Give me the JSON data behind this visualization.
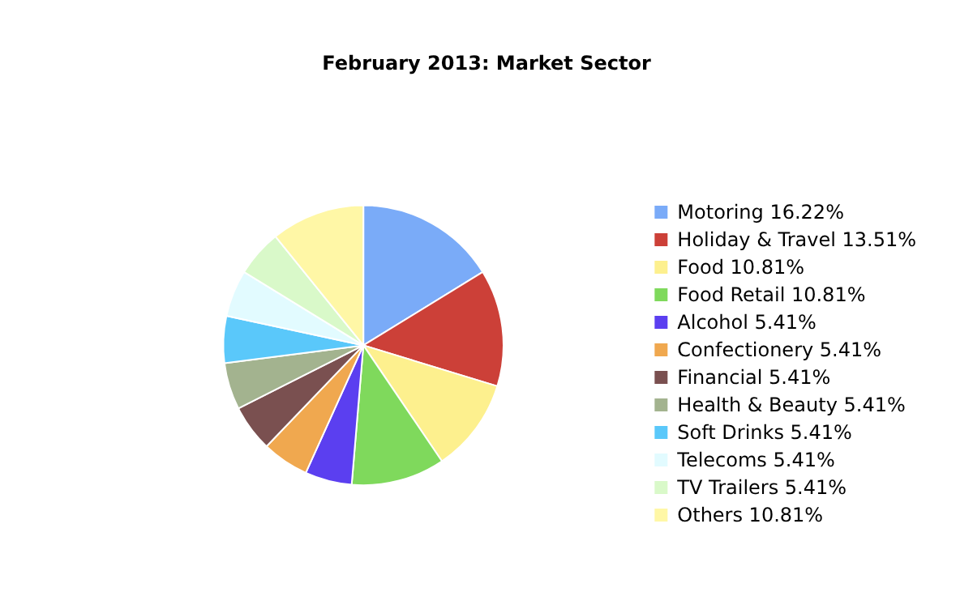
{
  "chart_data": {
    "type": "pie",
    "title": "February 2013: Market Sector",
    "categories": [
      "Motoring",
      "Holiday & Travel",
      "Food",
      "Food Retail",
      "Alcohol",
      "Confectionery",
      "Financial",
      "Health & Beauty",
      "Soft Drinks",
      "Telecoms",
      "TV Trailers",
      "Others"
    ],
    "values": [
      16.22,
      13.51,
      10.81,
      10.81,
      5.41,
      5.41,
      5.41,
      5.41,
      5.41,
      5.41,
      5.41,
      10.81
    ],
    "value_labels": [
      "16.22%",
      "13.51%",
      "10.81%",
      "10.81%",
      "5.41%",
      "5.41%",
      "5.41%",
      "5.41%",
      "5.41%",
      "5.41%",
      "5.41%",
      "10.81%"
    ],
    "colors": [
      "#7aabf8",
      "#cc4038",
      "#fdf08e",
      "#7fd95c",
      "#5b3ff0",
      "#f0a84f",
      "#7a5050",
      "#a3b38f",
      "#5ac8fa",
      "#e2fbff",
      "#d9f9c9",
      "#fff7a6"
    ],
    "legend": "right"
  }
}
